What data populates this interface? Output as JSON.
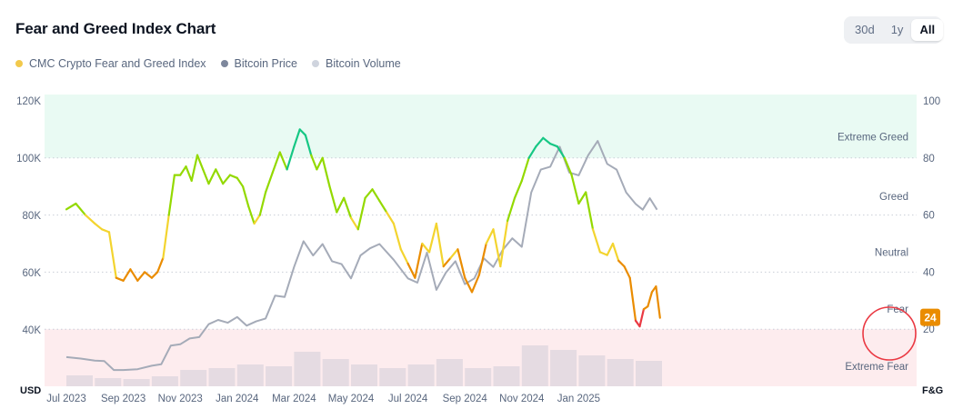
{
  "header": {
    "title": "Fear and Greed Index Chart"
  },
  "range_toggle": {
    "options": [
      "30d",
      "1y",
      "All"
    ],
    "selected": "All"
  },
  "legend": {
    "items": [
      {
        "label": "CMC Crypto Fear and Greed Index",
        "color": "#f2c94c"
      },
      {
        "label": "Bitcoin Price",
        "color": "#7d879c"
      },
      {
        "label": "Bitcoin Volume",
        "color": "#cfd4de"
      }
    ]
  },
  "colors": {
    "extreme_greed_zone": "#e9faf3",
    "extreme_fear_zone": "#fdecee",
    "extreme_greed": "#16c784",
    "greed": "#93d900",
    "neutral": "#f3d42f",
    "fear": "#ea8c00",
    "extreme_fear": "#ea3943",
    "btc_price": "#a5abb8",
    "btc_volume": "#dcd6dd",
    "highlight_circle": "#ea3943"
  },
  "chart_data": {
    "type": "line",
    "left_axis_unit": "USD",
    "right_axis_unit": "F&G",
    "left_ticks": [
      "120K",
      "100K",
      "80K",
      "60K",
      "40K"
    ],
    "left_tick_values": [
      120000,
      100000,
      80000,
      60000,
      40000
    ],
    "right_ticks": [
      "100",
      "80",
      "60",
      "40",
      "20"
    ],
    "right_tick_values": [
      100,
      80,
      60,
      40,
      20
    ],
    "left_ylim": [
      24000,
      120000
    ],
    "right_ylim": [
      0,
      100
    ],
    "zones": [
      {
        "label": "Extreme Greed",
        "range": [
          80,
          100
        ],
        "shaded": true
      },
      {
        "label": "Greed",
        "range": [
          60,
          80
        ],
        "shaded": false
      },
      {
        "label": "Neutral",
        "range": [
          40,
          60
        ],
        "shaded": false
      },
      {
        "label": "Fear",
        "range": [
          20,
          40
        ],
        "shaded": false
      },
      {
        "label": "Extreme Fear",
        "range": [
          0,
          20
        ],
        "shaded": true
      }
    ],
    "x_ticks": [
      "Jul 2023",
      "Sep 2023",
      "Nov 2023",
      "Jan 2024",
      "Mar 2024",
      "May 2024",
      "Jul 2024",
      "Sep 2024",
      "Nov 2024",
      "Jan 2025"
    ],
    "current_value": "24",
    "series": [
      {
        "name": "CMC Crypto Fear and Greed Index",
        "axis": "right",
        "points": [
          [
            "Jul 2023",
            62
          ],
          [
            "Jul 2023",
            64
          ],
          [
            "Jul 2023",
            60
          ],
          [
            "Aug 2023",
            57
          ],
          [
            "Aug 2023",
            55
          ],
          [
            "Aug 2023",
            54
          ],
          [
            "Aug 2023",
            38
          ],
          [
            "Sep 2023",
            37
          ],
          [
            "Sep 2023",
            41
          ],
          [
            "Sep 2023",
            37
          ],
          [
            "Sep 2023",
            40
          ],
          [
            "Oct 2023",
            38
          ],
          [
            "Oct 2023",
            40
          ],
          [
            "Oct 2023",
            45
          ],
          [
            "Oct 2023",
            60
          ],
          [
            "Oct 2023",
            74
          ],
          [
            "Nov 2023",
            74
          ],
          [
            "Nov 2023",
            77
          ],
          [
            "Nov 2023",
            72
          ],
          [
            "Nov 2023",
            81
          ],
          [
            "Nov 2023",
            76
          ],
          [
            "Dec 2023",
            71
          ],
          [
            "Dec 2023",
            76
          ],
          [
            "Dec 2023",
            71
          ],
          [
            "Dec 2023",
            74
          ],
          [
            "Jan 2024",
            73
          ],
          [
            "Jan 2024",
            70
          ],
          [
            "Jan 2024",
            63
          ],
          [
            "Jan 2024",
            57
          ],
          [
            "Jan 2024",
            60
          ],
          [
            "Feb 2024",
            68
          ],
          [
            "Feb 2024",
            75
          ],
          [
            "Feb 2024",
            82
          ],
          [
            "Feb 2024",
            76
          ],
          [
            "Mar 2024",
            84
          ],
          [
            "Mar 2024",
            90
          ],
          [
            "Mar 2024",
            88
          ],
          [
            "Mar 2024",
            81
          ],
          [
            "Mar 2024",
            76
          ],
          [
            "Apr 2024",
            80
          ],
          [
            "Apr 2024",
            70
          ],
          [
            "Apr 2024",
            61
          ],
          [
            "Apr 2024",
            66
          ],
          [
            "May 2024",
            59
          ],
          [
            "May 2024",
            55
          ],
          [
            "May 2024",
            66
          ],
          [
            "May 2024",
            69
          ],
          [
            "Jun 2024",
            65
          ],
          [
            "Jun 2024",
            61
          ],
          [
            "Jun 2024",
            57
          ],
          [
            "Jun 2024",
            48
          ],
          [
            "Jul 2024",
            43
          ],
          [
            "Jul 2024",
            38
          ],
          [
            "Jul 2024",
            50
          ],
          [
            "Jul 2024",
            47
          ],
          [
            "Aug 2024",
            57
          ],
          [
            "Aug 2024",
            42
          ],
          [
            "Aug 2024",
            45
          ],
          [
            "Aug 2024",
            48
          ],
          [
            "Sep 2024",
            38
          ],
          [
            "Sep 2024",
            33
          ],
          [
            "Sep 2024",
            39
          ],
          [
            "Sep 2024",
            50
          ],
          [
            "Oct 2024",
            55
          ],
          [
            "Oct 2024",
            42
          ],
          [
            "Oct 2024",
            58
          ],
          [
            "Oct 2024",
            66
          ],
          [
            "Nov 2024",
            72
          ],
          [
            "Nov 2024",
            80
          ],
          [
            "Nov 2024",
            84
          ],
          [
            "Nov 2024",
            87
          ],
          [
            "Dec 2024",
            85
          ],
          [
            "Dec 2024",
            84
          ],
          [
            "Dec 2024",
            80
          ],
          [
            "Dec 2024",
            74
          ],
          [
            "Jan 2025",
            64
          ],
          [
            "Jan 2025",
            68
          ],
          [
            "Jan 2025",
            55
          ],
          [
            "Jan 2025",
            47
          ],
          [
            "Feb 2025",
            46
          ],
          [
            "Feb 2025",
            50
          ],
          [
            "Feb 2025",
            44
          ],
          [
            "Feb 2025",
            42
          ],
          [
            "Feb 2025",
            38
          ],
          [
            "Mar 2025",
            23
          ],
          [
            "Mar 2025",
            21
          ],
          [
            "Mar 2025",
            27
          ],
          [
            "Mar 2025",
            28
          ],
          [
            "Mar 2025",
            33
          ],
          [
            "Mar 2025",
            35
          ],
          [
            "Mar 2025",
            24
          ]
        ]
      },
      {
        "name": "Bitcoin Price",
        "axis": "left",
        "points": [
          [
            "Jul 2023",
            30500
          ],
          [
            "Jul 2023",
            30000
          ],
          [
            "Aug 2023",
            29300
          ],
          [
            "Aug 2023",
            29100
          ],
          [
            "Aug 2023",
            26000
          ],
          [
            "Sep 2023",
            26000
          ],
          [
            "Sep 2023",
            26300
          ],
          [
            "Oct 2023",
            27500
          ],
          [
            "Oct 2023",
            28000
          ],
          [
            "Oct 2023",
            34500
          ],
          [
            "Nov 2023",
            35000
          ],
          [
            "Nov 2023",
            37000
          ],
          [
            "Nov 2023",
            37500
          ],
          [
            "Dec 2023",
            42000
          ],
          [
            "Dec 2023",
            43500
          ],
          [
            "Dec 2023",
            42500
          ],
          [
            "Jan 2024",
            44500
          ],
          [
            "Jan 2024",
            41500
          ],
          [
            "Jan 2024",
            43000
          ],
          [
            "Feb 2024",
            44000
          ],
          [
            "Feb 2024",
            52000
          ],
          [
            "Feb 2024",
            51500
          ],
          [
            "Mar 2024",
            62000
          ],
          [
            "Mar 2024",
            71000
          ],
          [
            "Mar 2024",
            66000
          ],
          [
            "Apr 2024",
            70000
          ],
          [
            "Apr 2024",
            64000
          ],
          [
            "Apr 2024",
            63000
          ],
          [
            "May 2024",
            58000
          ],
          [
            "May 2024",
            66000
          ],
          [
            "May 2024",
            68500
          ],
          [
            "Jun 2024",
            70000
          ],
          [
            "Jun 2024",
            64500
          ],
          [
            "Jul 2024",
            58000
          ],
          [
            "Jul 2024",
            56500
          ],
          [
            "Jul 2024",
            67000
          ],
          [
            "Aug 2024",
            54000
          ],
          [
            "Aug 2024",
            60000
          ],
          [
            "Aug 2024",
            64000
          ],
          [
            "Sep 2024",
            56000
          ],
          [
            "Sep 2024",
            58000
          ],
          [
            "Sep 2024",
            65000
          ],
          [
            "Oct 2024",
            62000
          ],
          [
            "Oct 2024",
            68000
          ],
          [
            "Oct 2024",
            72000
          ],
          [
            "Nov 2024",
            69000
          ],
          [
            "Nov 2024",
            88000
          ],
          [
            "Nov 2024",
            96000
          ],
          [
            "Dec 2024",
            97000
          ],
          [
            "Dec 2024",
            104000
          ],
          [
            "Dec 2024",
            95000
          ],
          [
            "Jan 2025",
            94000
          ],
          [
            "Jan 2025",
            101000
          ],
          [
            "Jan 2025",
            106000
          ],
          [
            "Feb 2025",
            98000
          ],
          [
            "Feb 2025",
            96000
          ],
          [
            "Feb 2025",
            88000
          ],
          [
            "Mar 2025",
            84000
          ],
          [
            "Mar 2025",
            82000
          ],
          [
            "Mar 2025",
            86000
          ],
          [
            "Mar 2025",
            82000
          ]
        ]
      },
      {
        "name": "Bitcoin Volume",
        "axis": "volume",
        "points": [
          [
            "Jul 2023",
            12
          ],
          [
            "Aug 2023",
            9
          ],
          [
            "Sep 2023",
            8
          ],
          [
            "Oct 2023",
            11
          ],
          [
            "Nov 2023",
            18
          ],
          [
            "Dec 2023",
            20
          ],
          [
            "Jan 2024",
            24
          ],
          [
            "Feb 2024",
            22
          ],
          [
            "Mar 2024",
            38
          ],
          [
            "Apr 2024",
            30
          ],
          [
            "May 2024",
            24
          ],
          [
            "Jun 2024",
            20
          ],
          [
            "Jul 2024",
            24
          ],
          [
            "Aug 2024",
            30
          ],
          [
            "Sep 2024",
            20
          ],
          [
            "Oct 2024",
            22
          ],
          [
            "Nov 2024",
            45
          ],
          [
            "Dec 2024",
            40
          ],
          [
            "Jan 2025",
            34
          ],
          [
            "Feb 2025",
            30
          ],
          [
            "Mar 2025",
            28
          ]
        ]
      }
    ]
  }
}
